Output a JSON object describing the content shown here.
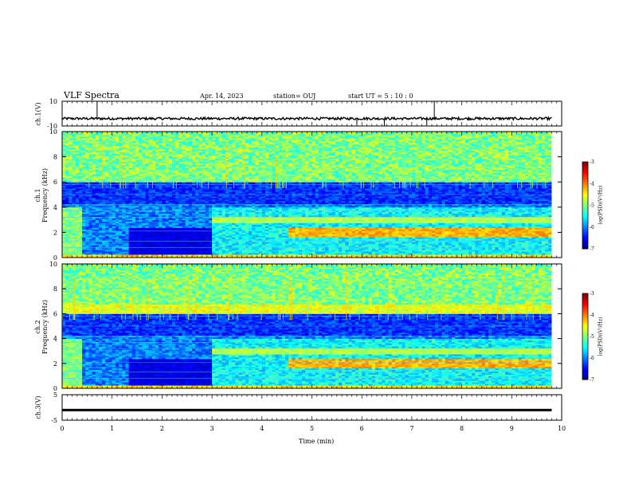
{
  "header": {
    "title": "VLF Spectra",
    "date": "Apr. 14, 2023",
    "station": "station= OUJ",
    "start": "start UT =  5 : 10 : 0"
  },
  "panels": {
    "ch1_wave_label": "ch.1(V)",
    "ch1_spec_label": "ch.1\nFrequency (kHz)",
    "ch2_spec_label": "ch.2\nFrequency (kHz)",
    "ch3_label": "ch.3(V)",
    "cb_label": "log(PSD)(V²/Hz)",
    "cb_ticks": [
      "-3",
      "-4",
      "-5",
      "-6",
      "-7"
    ]
  },
  "chart_data": [
    {
      "type": "line",
      "title": "VLF Spectra",
      "ylabel": "ch.1(V)",
      "ylim": [
        -10,
        10
      ],
      "yticks": [
        "10",
        "-10"
      ],
      "x": [
        0,
        10
      ],
      "xlim": [
        0,
        10
      ],
      "description_values": "waveform around -4 V",
      "y": [
        -4,
        -4
      ]
    },
    {
      "type": "heatmap",
      "ylabel": "ch.1 Frequency (kHz)",
      "ylim": [
        0,
        10
      ],
      "yticks": [
        "0",
        "2",
        "4",
        "6",
        "8",
        "10"
      ],
      "xlim": [
        0,
        10
      ],
      "colorbar": {
        "label": "log(PSD)(V²/Hz)",
        "range": [
          -7,
          -3
        ],
        "ticks": [
          "-3",
          "-4",
          "-5",
          "-6",
          "-7"
        ]
      }
    },
    {
      "type": "heatmap",
      "ylabel": "ch.2 Frequency (kHz)",
      "ylim": [
        0,
        10
      ],
      "yticks": [
        "0",
        "2",
        "4",
        "6",
        "8",
        "10"
      ],
      "xlim": [
        0,
        10
      ],
      "colorbar": {
        "label": "log(PSD)(V²/Hz)",
        "range": [
          -7,
          -3
        ],
        "ticks": [
          "-3",
          "-4",
          "-5",
          "-6",
          "-7"
        ]
      }
    },
    {
      "type": "line",
      "ylabel": "ch.3(V)",
      "ylim": [
        -5,
        5
      ],
      "yticks": [
        "5",
        "-5"
      ],
      "xlim": [
        0,
        10
      ],
      "x": [
        0,
        9.8
      ],
      "y": [
        -1,
        -1
      ],
      "xlabel": "Time (min)",
      "xticks": [
        "0",
        "1",
        "2",
        "3",
        "4",
        "5",
        "6",
        "7",
        "8",
        "9",
        "10"
      ]
    }
  ]
}
